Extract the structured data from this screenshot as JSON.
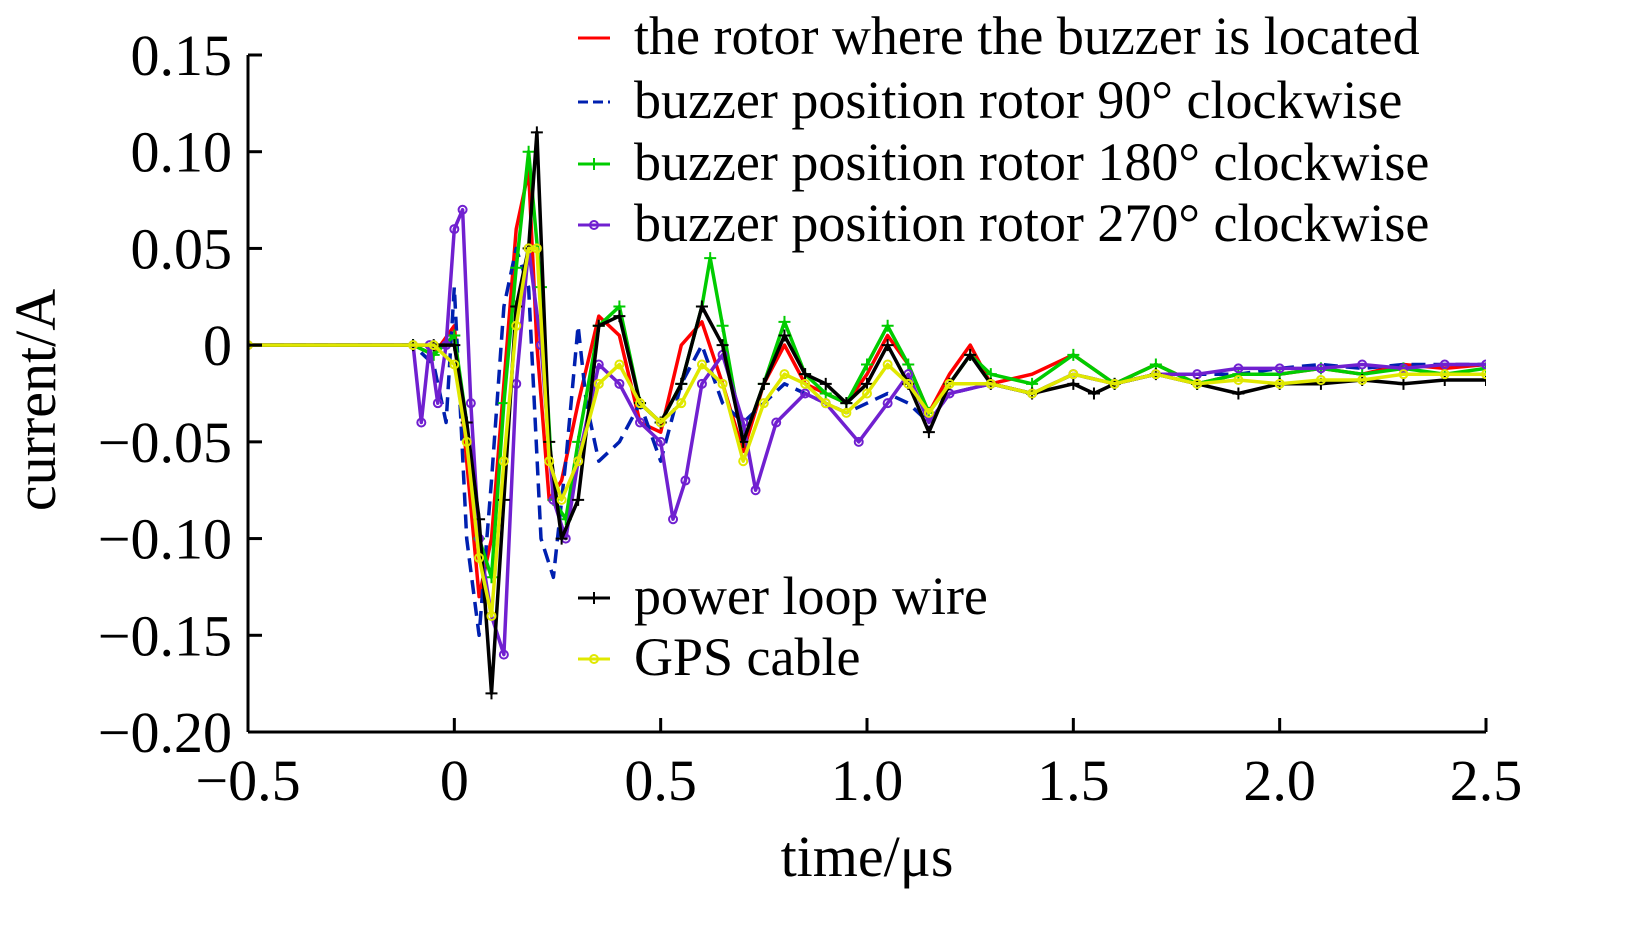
{
  "chart_data": {
    "type": "line",
    "xlabel": "time/μs",
    "ylabel": "current/A",
    "xlim": [
      -0.5,
      2.5
    ],
    "ylim": [
      -0.2,
      0.15
    ],
    "xticks": [
      -0.5,
      0,
      0.5,
      1.0,
      1.5,
      2.0,
      2.5
    ],
    "xtick_labels": [
      "−0.5",
      "0",
      "0.5",
      "1.0",
      "1.5",
      "2.0",
      "2.5"
    ],
    "yticks": [
      0.15,
      0.1,
      0.05,
      0,
      -0.05,
      -0.1,
      -0.15,
      -0.2
    ],
    "ytick_labels": [
      "0.15",
      "0.10",
      "0.05",
      "0",
      "−0.05",
      "−0.10",
      "−0.15",
      "−0.20"
    ],
    "grid": false,
    "legend_top": "top-right",
    "legend_bottom": "lower-center",
    "series": [
      {
        "name": "the rotor where the buzzer is located",
        "color": "#ff0000",
        "style": "solid",
        "marker": "none",
        "x": [
          -0.5,
          -0.1,
          -0.05,
          0.0,
          0.03,
          0.06,
          0.09,
          0.12,
          0.15,
          0.18,
          0.2,
          0.23,
          0.26,
          0.3,
          0.35,
          0.4,
          0.45,
          0.5,
          0.55,
          0.6,
          0.65,
          0.7,
          0.75,
          0.8,
          0.85,
          0.9,
          0.95,
          1.0,
          1.05,
          1.1,
          1.15,
          1.2,
          1.25,
          1.3,
          1.4,
          1.5,
          1.6,
          1.7,
          1.8,
          1.9,
          2.0,
          2.1,
          2.2,
          2.3,
          2.4,
          2.5
        ],
        "y": [
          0.0,
          0.0,
          -0.005,
          0.01,
          -0.06,
          -0.13,
          -0.1,
          -0.02,
          0.06,
          0.09,
          0.0,
          -0.08,
          -0.07,
          -0.03,
          0.015,
          0.005,
          -0.04,
          -0.045,
          0.0,
          0.012,
          -0.02,
          -0.055,
          -0.02,
          0.0,
          -0.02,
          -0.025,
          -0.03,
          -0.015,
          0.005,
          -0.01,
          -0.035,
          -0.015,
          0.0,
          -0.02,
          -0.015,
          -0.005,
          -0.02,
          -0.01,
          -0.02,
          -0.015,
          -0.015,
          -0.012,
          -0.015,
          -0.01,
          -0.012,
          -0.01
        ]
      },
      {
        "name": "buzzer position rotor 90° clockwise",
        "color": "#0020b0",
        "style": "dashed",
        "marker": "none",
        "x": [
          -0.5,
          -0.1,
          -0.05,
          -0.02,
          0.0,
          0.03,
          0.06,
          0.09,
          0.12,
          0.15,
          0.18,
          0.21,
          0.24,
          0.27,
          0.3,
          0.32,
          0.35,
          0.4,
          0.45,
          0.5,
          0.55,
          0.6,
          0.65,
          0.7,
          0.75,
          0.8,
          0.85,
          0.9,
          0.95,
          1.0,
          1.05,
          1.1,
          1.15,
          1.2,
          1.3,
          1.4,
          1.5,
          1.6,
          1.7,
          1.8,
          1.9,
          2.0,
          2.1,
          2.2,
          2.3,
          2.4,
          2.5
        ],
        "y": [
          0.0,
          0.0,
          -0.01,
          -0.04,
          0.03,
          -0.1,
          -0.15,
          -0.07,
          0.02,
          0.05,
          0.03,
          -0.1,
          -0.12,
          -0.06,
          0.01,
          -0.03,
          -0.06,
          -0.05,
          -0.03,
          -0.06,
          -0.02,
          0.0,
          -0.03,
          -0.04,
          -0.03,
          -0.02,
          -0.025,
          -0.03,
          -0.035,
          -0.03,
          -0.025,
          -0.03,
          -0.04,
          -0.025,
          -0.02,
          -0.025,
          -0.015,
          -0.02,
          -0.015,
          -0.015,
          -0.015,
          -0.012,
          -0.01,
          -0.012,
          -0.01,
          -0.01,
          -0.01
        ]
      },
      {
        "name": "buzzer position rotor 180° clockwise",
        "color": "#00cc00",
        "style": "solid",
        "marker": "plus",
        "x": [
          -0.5,
          -0.1,
          -0.05,
          0.0,
          0.03,
          0.06,
          0.09,
          0.12,
          0.15,
          0.18,
          0.21,
          0.24,
          0.27,
          0.3,
          0.35,
          0.4,
          0.45,
          0.5,
          0.55,
          0.6,
          0.62,
          0.65,
          0.7,
          0.75,
          0.8,
          0.85,
          0.9,
          0.95,
          1.0,
          1.05,
          1.1,
          1.15,
          1.2,
          1.25,
          1.3,
          1.4,
          1.5,
          1.6,
          1.7,
          1.8,
          1.9,
          2.0,
          2.1,
          2.2,
          2.3,
          2.4,
          2.5
        ],
        "y": [
          0.0,
          0.0,
          -0.005,
          0.005,
          -0.04,
          -0.1,
          -0.12,
          -0.03,
          0.04,
          0.1,
          0.03,
          -0.08,
          -0.09,
          -0.05,
          0.01,
          0.02,
          -0.03,
          -0.04,
          -0.02,
          0.02,
          0.045,
          0.01,
          -0.05,
          -0.02,
          0.012,
          -0.015,
          -0.025,
          -0.03,
          -0.01,
          0.01,
          -0.01,
          -0.035,
          -0.02,
          -0.005,
          -0.015,
          -0.02,
          -0.005,
          -0.02,
          -0.01,
          -0.02,
          -0.015,
          -0.015,
          -0.012,
          -0.015,
          -0.012,
          -0.015,
          -0.012
        ]
      },
      {
        "name": "buzzer position rotor 270° clockwise",
        "color": "#7020d0",
        "style": "solid",
        "marker": "circle",
        "x": [
          -0.5,
          -0.1,
          -0.08,
          -0.06,
          -0.04,
          -0.02,
          0.0,
          0.02,
          0.04,
          0.06,
          0.09,
          0.12,
          0.15,
          0.18,
          0.21,
          0.24,
          0.27,
          0.3,
          0.35,
          0.4,
          0.45,
          0.5,
          0.53,
          0.56,
          0.6,
          0.65,
          0.7,
          0.73,
          0.78,
          0.85,
          0.9,
          0.98,
          1.05,
          1.1,
          1.15,
          1.2,
          1.3,
          1.4,
          1.5,
          1.6,
          1.7,
          1.8,
          1.9,
          2.0,
          2.1,
          2.2,
          2.3,
          2.4,
          2.5
        ],
        "y": [
          0.0,
          0.0,
          -0.04,
          0.0,
          -0.03,
          0.0,
          0.06,
          0.07,
          -0.03,
          -0.1,
          -0.14,
          -0.16,
          -0.02,
          0.05,
          0.0,
          -0.08,
          -0.1,
          -0.06,
          -0.01,
          -0.02,
          -0.04,
          -0.05,
          -0.09,
          -0.07,
          -0.02,
          -0.005,
          -0.04,
          -0.075,
          -0.04,
          -0.025,
          -0.03,
          -0.05,
          -0.03,
          -0.015,
          -0.04,
          -0.025,
          -0.02,
          -0.025,
          -0.015,
          -0.02,
          -0.015,
          -0.015,
          -0.012,
          -0.012,
          -0.012,
          -0.01,
          -0.012,
          -0.01,
          -0.01
        ]
      },
      {
        "name": "power loop wire",
        "color": "#000000",
        "style": "solid",
        "marker": "plus",
        "x": [
          -0.5,
          -0.1,
          -0.05,
          0.0,
          0.03,
          0.06,
          0.09,
          0.12,
          0.15,
          0.18,
          0.2,
          0.23,
          0.26,
          0.3,
          0.35,
          0.4,
          0.45,
          0.5,
          0.55,
          0.6,
          0.65,
          0.7,
          0.75,
          0.8,
          0.85,
          0.9,
          0.95,
          1.0,
          1.05,
          1.1,
          1.15,
          1.2,
          1.25,
          1.3,
          1.4,
          1.5,
          1.55,
          1.6,
          1.7,
          1.8,
          1.9,
          2.0,
          2.1,
          2.2,
          2.3,
          2.4,
          2.5
        ],
        "y": [
          0.0,
          0.0,
          0.0,
          0.0,
          -0.04,
          -0.09,
          -0.18,
          -0.08,
          0.02,
          0.05,
          0.11,
          -0.05,
          -0.1,
          -0.08,
          0.01,
          0.015,
          -0.03,
          -0.04,
          -0.02,
          0.02,
          0.0,
          -0.05,
          -0.02,
          0.005,
          -0.015,
          -0.02,
          -0.03,
          -0.02,
          0.0,
          -0.02,
          -0.045,
          -0.02,
          -0.005,
          -0.02,
          -0.025,
          -0.02,
          -0.025,
          -0.02,
          -0.015,
          -0.02,
          -0.025,
          -0.02,
          -0.02,
          -0.018,
          -0.02,
          -0.018,
          -0.018
        ]
      },
      {
        "name": "GPS cable",
        "color": "#e0e800",
        "style": "solid",
        "marker": "circle",
        "x": [
          -0.5,
          -0.1,
          -0.05,
          0.0,
          0.03,
          0.06,
          0.09,
          0.12,
          0.15,
          0.18,
          0.2,
          0.23,
          0.26,
          0.3,
          0.35,
          0.4,
          0.45,
          0.5,
          0.55,
          0.6,
          0.65,
          0.7,
          0.75,
          0.8,
          0.85,
          0.9,
          0.95,
          1.0,
          1.05,
          1.1,
          1.15,
          1.2,
          1.3,
          1.4,
          1.5,
          1.6,
          1.7,
          1.8,
          1.9,
          2.0,
          2.1,
          2.2,
          2.3,
          2.4,
          2.5
        ],
        "y": [
          0.0,
          0.0,
          0.0,
          -0.01,
          -0.05,
          -0.11,
          -0.14,
          -0.06,
          0.01,
          0.05,
          0.05,
          -0.06,
          -0.08,
          -0.06,
          -0.02,
          -0.01,
          -0.03,
          -0.04,
          -0.03,
          -0.01,
          -0.02,
          -0.06,
          -0.03,
          -0.015,
          -0.02,
          -0.03,
          -0.035,
          -0.025,
          -0.01,
          -0.02,
          -0.035,
          -0.02,
          -0.02,
          -0.025,
          -0.015,
          -0.02,
          -0.015,
          -0.02,
          -0.018,
          -0.02,
          -0.018,
          -0.018,
          -0.015,
          -0.015,
          -0.015
        ]
      }
    ]
  }
}
